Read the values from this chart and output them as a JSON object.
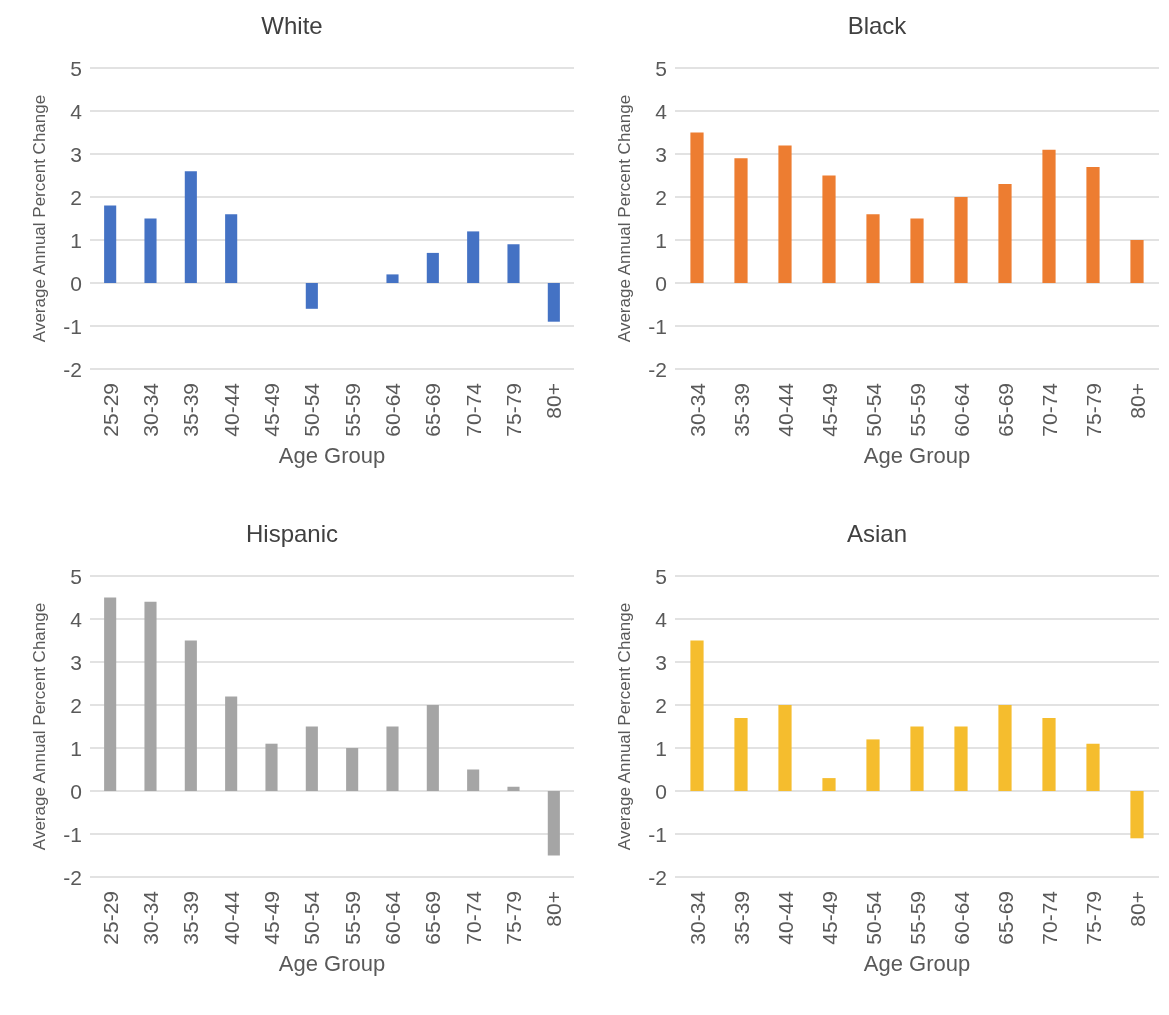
{
  "chart_data": [
    {
      "type": "bar",
      "title": "White",
      "xlabel": "Age Group",
      "ylabel": "Average Annual Percent Change",
      "categories": [
        "25-29",
        "30-34",
        "35-39",
        "40-44",
        "45-49",
        "50-54",
        "55-59",
        "60-64",
        "65-69",
        "70-74",
        "75-79",
        "80+"
      ],
      "values": [
        1.8,
        1.5,
        2.6,
        1.6,
        0,
        -0.6,
        0,
        0.2,
        0.7,
        1.2,
        0.9,
        -0.9
      ],
      "color": "#4472c4",
      "ylim": [
        -2,
        5
      ],
      "yticks": [
        -2,
        -1,
        0,
        1,
        2,
        3,
        4,
        5
      ],
      "grid": "y"
    },
    {
      "type": "bar",
      "title": "Black",
      "xlabel": "Age Group",
      "ylabel": "Average Annual Percent Change",
      "categories": [
        "30-34",
        "35-39",
        "40-44",
        "45-49",
        "50-54",
        "55-59",
        "60-64",
        "65-69",
        "70-74",
        "75-79",
        "80+"
      ],
      "values": [
        3.5,
        2.9,
        3.2,
        2.5,
        1.6,
        1.5,
        2.0,
        2.3,
        3.1,
        2.7,
        1.0
      ],
      "color": "#ed7d31",
      "ylim": [
        -2,
        5
      ],
      "yticks": [
        -2,
        -1,
        0,
        1,
        2,
        3,
        4,
        5
      ],
      "grid": "y"
    },
    {
      "type": "bar",
      "title": "Hispanic",
      "xlabel": "Age Group",
      "ylabel": "Average Annual Percent Change",
      "categories": [
        "25-29",
        "30-34",
        "35-39",
        "40-44",
        "45-49",
        "50-54",
        "55-59",
        "60-64",
        "65-69",
        "70-74",
        "75-79",
        "80+"
      ],
      "values": [
        4.5,
        4.4,
        3.5,
        2.2,
        1.1,
        1.5,
        1.0,
        1.5,
        2.0,
        0.5,
        0.1,
        -1.5
      ],
      "color": "#a5a5a5",
      "ylim": [
        -2,
        5
      ],
      "yticks": [
        -2,
        -1,
        0,
        1,
        2,
        3,
        4,
        5
      ],
      "grid": "y"
    },
    {
      "type": "bar",
      "title": "Asian",
      "xlabel": "Age Group",
      "ylabel": "Average Annual Percent Change",
      "categories": [
        "30-34",
        "35-39",
        "40-44",
        "45-49",
        "50-54",
        "55-59",
        "60-64",
        "65-69",
        "70-74",
        "75-79",
        "80+"
      ],
      "values": [
        3.5,
        1.7,
        2.0,
        0.3,
        1.2,
        1.5,
        1.5,
        2.0,
        1.7,
        1.1,
        -1.1
      ],
      "color": "#f5bd2e",
      "ylim": [
        -2,
        5
      ],
      "yticks": [
        -2,
        -1,
        0,
        1,
        2,
        3,
        4,
        5
      ],
      "grid": "y"
    }
  ]
}
